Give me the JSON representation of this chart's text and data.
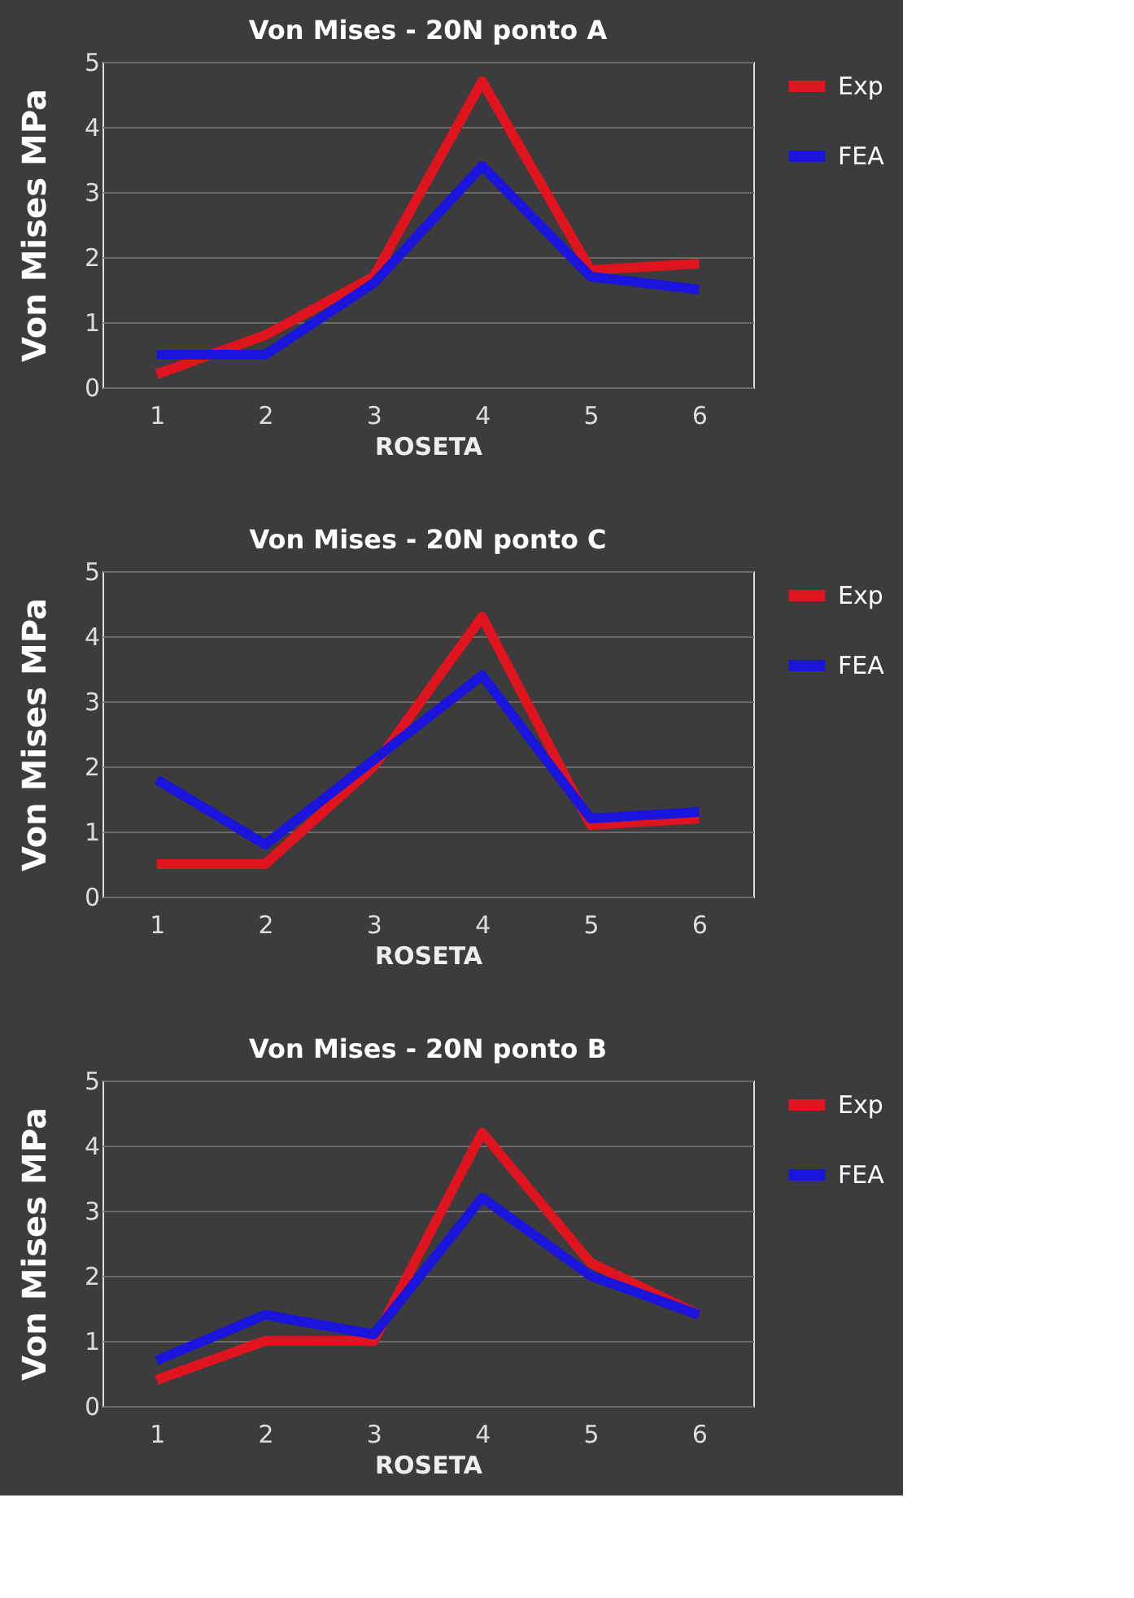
{
  "chart_data": [
    {
      "type": "line",
      "title": "Von Mises - 20N ponto A",
      "xlabel": "ROSETA",
      "ylabel": "Von Mises MPa",
      "categories": [
        "1",
        "2",
        "3",
        "4",
        "5",
        "6"
      ],
      "ylim": [
        0,
        5
      ],
      "yticks": [
        0,
        1,
        2,
        3,
        4,
        5
      ],
      "grid": "y",
      "legend": "right",
      "line_style": "solid",
      "series": [
        {
          "name": "Exp",
          "color": "#e0141e",
          "values": [
            0.2,
            0.8,
            1.7,
            4.7,
            1.8,
            1.9
          ]
        },
        {
          "name": "FEA",
          "color": "#1a14dc",
          "values": [
            0.5,
            0.5,
            1.6,
            3.4,
            1.7,
            1.5
          ]
        }
      ]
    },
    {
      "type": "line",
      "title": "Von Mises - 20N ponto C",
      "xlabel": "ROSETA",
      "ylabel": "Von Mises MPa",
      "categories": [
        "1",
        "2",
        "3",
        "4",
        "5",
        "6"
      ],
      "ylim": [
        0,
        5
      ],
      "yticks": [
        0,
        1,
        2,
        3,
        4,
        5
      ],
      "grid": "y",
      "legend": "right",
      "line_style": "solid",
      "series": [
        {
          "name": "Exp",
          "color": "#e0141e",
          "values": [
            0.5,
            0.5,
            2.0,
            4.3,
            1.1,
            1.2
          ]
        },
        {
          "name": "FEA",
          "color": "#1a14dc",
          "values": [
            1.8,
            0.8,
            2.1,
            3.4,
            1.2,
            1.3
          ]
        }
      ]
    },
    {
      "type": "line",
      "title": "Von Mises - 20N ponto B",
      "xlabel": "ROSETA",
      "ylabel": "Von Mises MPa",
      "categories": [
        "1",
        "2",
        "3",
        "4",
        "5",
        "6"
      ],
      "ylim": [
        0,
        5
      ],
      "yticks": [
        0,
        1,
        2,
        3,
        4,
        5
      ],
      "grid": "y",
      "legend": "right",
      "line_style": "solid",
      "series": [
        {
          "name": "Exp",
          "color": "#e0141e",
          "values": [
            0.4,
            1.0,
            1.0,
            4.2,
            2.2,
            1.4
          ]
        },
        {
          "name": "FEA",
          "color": "#1a14dc",
          "values": [
            0.7,
            1.4,
            1.1,
            3.2,
            2.0,
            1.4
          ]
        }
      ]
    }
  ]
}
